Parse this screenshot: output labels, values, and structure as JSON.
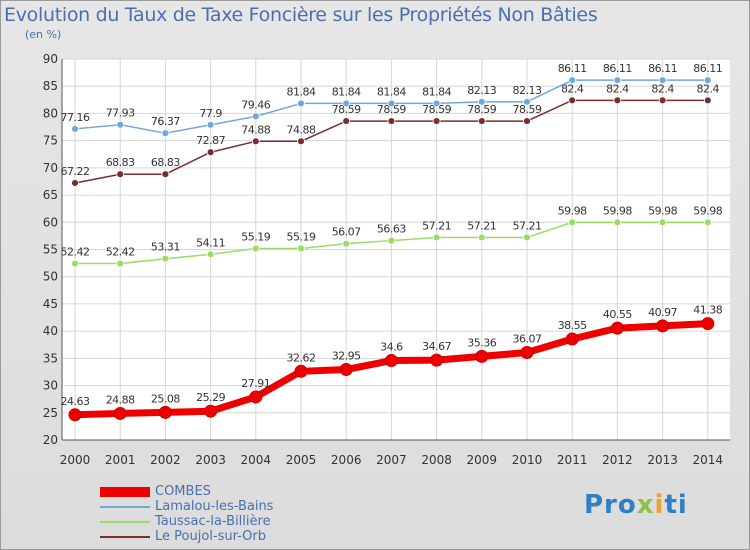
{
  "header": {
    "title": "Evolution du Taux de Taxe Foncière sur les Propriétés Non Bâties",
    "subtitle": "(en %)"
  },
  "logo": {
    "text": "Proxiti"
  },
  "chart_data": {
    "type": "line",
    "title": "Evolution du Taux de Taxe Foncière sur les Propriétés Non Bâties",
    "ylabel": "(en %)",
    "xlabel": "",
    "x": [
      "2000",
      "2001",
      "2002",
      "2003",
      "2004",
      "2005",
      "2006",
      "2007",
      "2008",
      "2009",
      "2010",
      "2011",
      "2012",
      "2013",
      "2014"
    ],
    "ylim": [
      20,
      90
    ],
    "yticks": [
      20,
      25,
      30,
      35,
      40,
      45,
      50,
      55,
      60,
      65,
      70,
      75,
      80,
      85,
      90
    ],
    "grid": true,
    "legend_position": "bottom-left",
    "series": [
      {
        "name": "COMBES",
        "color": "#ee0000",
        "values": [
          24.63,
          24.88,
          25.08,
          25.29,
          27.91,
          32.62,
          32.95,
          34.6,
          34.67,
          35.36,
          36.07,
          38.55,
          40.55,
          40.97,
          41.38
        ],
        "labels": [
          "24.63",
          "24.88",
          "25.08",
          "25.29",
          "27.91",
          "32.62",
          "32.95",
          "34.6",
          "34.67",
          "35.36",
          "36.07",
          "38.55",
          "40.55",
          "40.97",
          "41.38"
        ]
      },
      {
        "name": "Lamalou-les-Bains",
        "color": "#6fa8dc",
        "values": [
          77.16,
          77.93,
          76.37,
          77.9,
          79.46,
          81.84,
          81.84,
          81.84,
          81.84,
          82.13,
          82.13,
          86.11,
          86.11,
          86.11,
          86.11
        ],
        "labels": [
          "77.16",
          "77.93",
          "76.37",
          "77.9",
          "79.46",
          "81.84",
          "81.84",
          "81.84",
          "81.84",
          "82.13",
          "82.13",
          "86.11",
          "86.11",
          "86.11",
          "86.11"
        ]
      },
      {
        "name": "Taussac-la-Billière",
        "color": "#99dd66",
        "values": [
          52.42,
          52.42,
          53.31,
          54.11,
          55.19,
          55.19,
          56.07,
          56.63,
          57.21,
          57.21,
          57.21,
          59.98,
          59.98,
          59.98,
          59.98
        ],
        "labels": [
          "52.42",
          "52.42",
          "53.31",
          "54.11",
          "55.19",
          "55.19",
          "56.07",
          "56.63",
          "57.21",
          "57.21",
          "57.21",
          "59.98",
          "59.98",
          "59.98",
          "59.98"
        ]
      },
      {
        "name": "Le Poujol-sur-Orb",
        "color": "#7a2e2e",
        "values": [
          67.22,
          68.83,
          68.83,
          72.87,
          74.88,
          74.88,
          78.59,
          78.59,
          78.59,
          78.59,
          78.59,
          82.4,
          82.4,
          82.4,
          82.4
        ],
        "labels": [
          "67.22",
          "68.83",
          "68.83",
          "72.87",
          "74.88",
          "74.88",
          "78.59",
          "78.59",
          "78.59",
          "78.59",
          "78.59",
          "82.4",
          "82.4",
          "82.4",
          "82.4"
        ]
      }
    ]
  }
}
